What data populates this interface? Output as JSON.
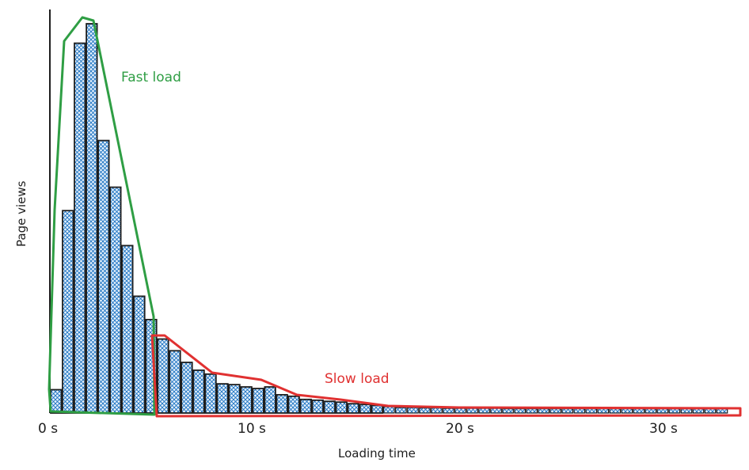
{
  "chart_data": {
    "type": "bar",
    "title": "",
    "xlabel": "Loading time",
    "ylabel": "Page views",
    "x_unit": "s",
    "x_ticks": [
      {
        "value": 0,
        "label": "0 s"
      },
      {
        "value": 10,
        "label": "10 s"
      },
      {
        "value": 20,
        "label": "20 s"
      },
      {
        "value": 30,
        "label": "30 s"
      }
    ],
    "xlim": [
      0,
      33.5
    ],
    "ylim": [
      0,
      100
    ],
    "y_ticks_shown": false,
    "grid": false,
    "bin_width_s": 0.58,
    "bins_start_s": [
      0.0,
      0.58,
      1.16,
      1.74,
      2.32,
      2.9,
      3.48,
      4.06,
      4.64,
      5.22,
      5.8,
      6.38,
      6.96,
      7.54,
      8.12,
      8.7,
      9.28,
      9.86,
      10.44,
      11.02,
      11.6,
      12.18,
      12.76,
      13.34,
      13.92,
      14.5,
      15.08,
      15.66,
      16.24,
      16.82,
      17.4,
      17.98,
      18.56,
      19.14,
      19.72,
      20.3,
      20.88,
      21.46,
      22.04,
      22.62,
      23.2,
      23.78,
      24.36,
      24.94,
      25.52,
      26.1,
      26.68,
      27.26,
      27.84,
      28.42,
      29.0,
      29.58,
      30.16,
      30.74,
      31.32,
      31.9,
      32.48
    ],
    "values": [
      6,
      52,
      95,
      100,
      70,
      58,
      43,
      30,
      24,
      19,
      16,
      13,
      11,
      10,
      7.5,
      7.3,
      6.7,
      6.3,
      6.7,
      4.7,
      4.3,
      3.5,
      3.3,
      3,
      2.8,
      2.4,
      2.2,
      2,
      1.6,
      1.4,
      1.4,
      1.3,
      1.3,
      1.2,
      1.2,
      1.2,
      1.2,
      1.2,
      1.1,
      1.1,
      1.1,
      1.1,
      1.1,
      1.1,
      1.1,
      1.1,
      1.1,
      1.1,
      1.1,
      1.1,
      1.1,
      1.1,
      1.1,
      1.1,
      1.1,
      1.1,
      1.1
    ],
    "annotations": [
      {
        "label": "Fast load",
        "color": "#2f9e44",
        "range_s": [
          0,
          5.2
        ],
        "type": "enclosing-outline"
      },
      {
        "label": "Slow load",
        "color": "#e03131",
        "range_s": [
          5.2,
          33.5
        ],
        "type": "enclosing-outline"
      }
    ],
    "bar_fill": "#1971c2",
    "bar_stroke": "#1e1e1e",
    "style": "hand-drawn cross-hatch"
  },
  "labels": {
    "fast": "Fast load",
    "slow": "Slow load",
    "x_axis": "Loading time",
    "y_axis": "Page views",
    "ticks": [
      "0 s",
      "10 s",
      "20 s",
      "30 s"
    ]
  },
  "colors": {
    "fast": "#2f9e44",
    "slow": "#e03131",
    "bar": "#1971c2",
    "ink": "#1e1e1e"
  }
}
